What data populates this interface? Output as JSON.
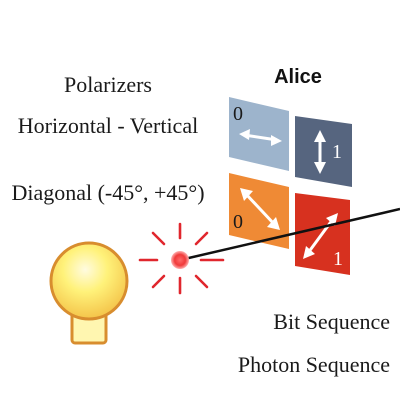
{
  "labels": {
    "polarizers": "Polarizers",
    "horizontal_vertical": "Horizontal - Vertical",
    "diagonal": "Diagonal (-45°, +45°)",
    "alice": "Alice",
    "bit_sequence": "Bit Sequence",
    "photon_sequence": "Photon Sequence"
  },
  "tiles": [
    {
      "bit": "0",
      "icon": "horizontal-arrow-icon"
    },
    {
      "bit": "1",
      "icon": "vertical-arrow-icon"
    },
    {
      "bit": "0",
      "icon": "diagonal-minus45-arrow-icon"
    },
    {
      "bit": "1",
      "icon": "diagonal-plus45-arrow-icon"
    }
  ],
  "colors": {
    "tile_horizontal": "#9db4cc",
    "tile_vertical": "#56657f",
    "tile_minus45": "#ef8a35",
    "tile_plus45": "#d7311f",
    "bulb_fill": "#fff27a",
    "bulb_stroke": "#d88d2e",
    "rays": "#e0262d",
    "beam": "#111111"
  }
}
